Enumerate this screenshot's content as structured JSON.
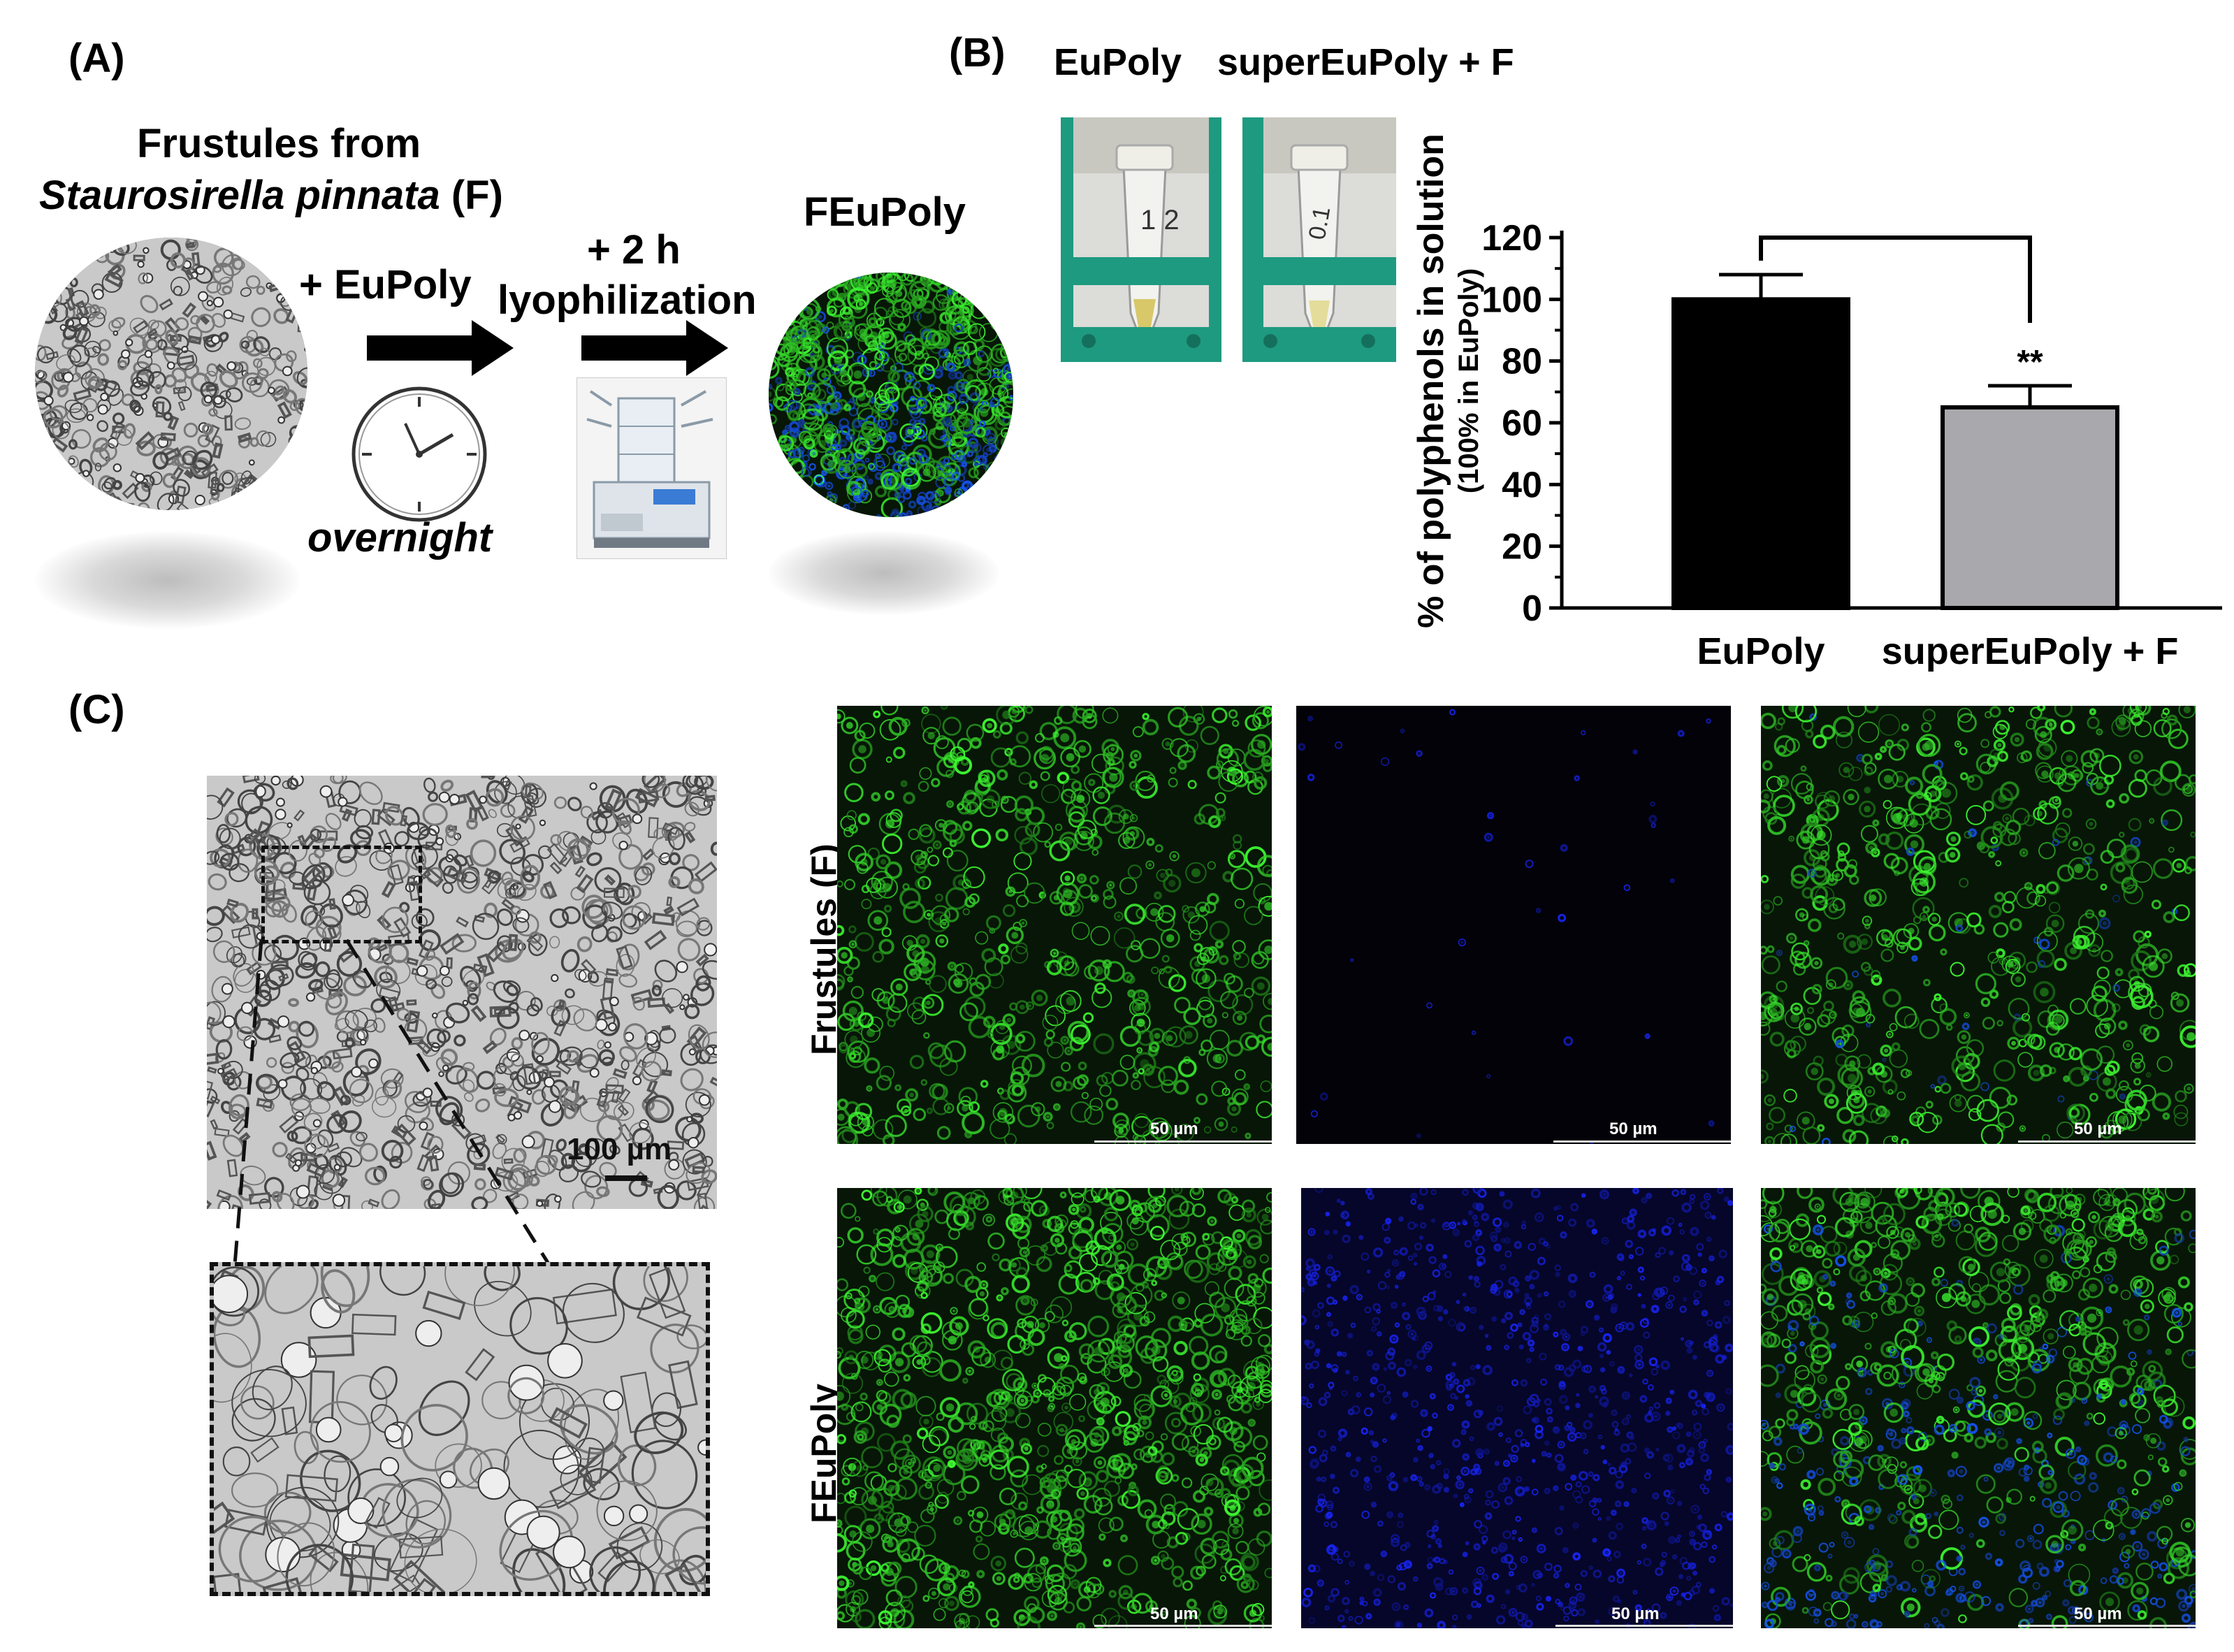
{
  "panels": {
    "a": "(A)",
    "b": "(B)",
    "c": "(C)"
  },
  "panelA": {
    "frustules_title_1": "Frustules from",
    "frustules_title_2a": "Staurosirella pinnata",
    "frustules_title_2b": " (F)",
    "step1": "+ EuPoly",
    "step1_time": "overnight",
    "step2_line1": "+ 2 h",
    "step2_line2": "lyophilization",
    "product": "FEuPoly"
  },
  "panelB": {
    "photo_label_1": "EuPoly",
    "photo_label_2": "superEuPoly + F",
    "tube1_text": "1 2",
    "tube2_text": "0.1",
    "significance": "**"
  },
  "chart_data": {
    "type": "bar",
    "categories": [
      "EuPoly",
      "superEuPoly + F"
    ],
    "values": [
      100,
      65
    ],
    "errors": [
      8,
      7
    ],
    "colors": [
      "#000000",
      "#a8a8ad"
    ],
    "ylabel": "% of polyphenols in solution",
    "ylabel_sub": "(100% in EuPoly)",
    "ylim": [
      0,
      120
    ],
    "yticks": [
      0,
      20,
      40,
      60,
      80,
      100,
      120
    ],
    "grid": false
  },
  "panelC": {
    "scale_bar_bw": "100 µm",
    "row1_label": "Frustules (F)",
    "row2_label": "FEuPoly",
    "scale_bar": "50 µm"
  }
}
